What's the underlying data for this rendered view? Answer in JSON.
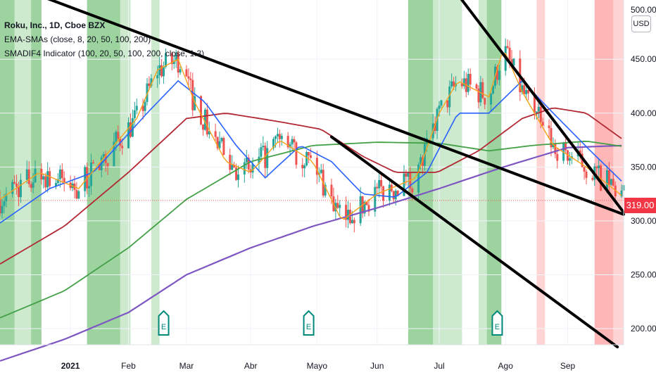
{
  "symbol": "Roku, Inc., 1D, Cboe BZX",
  "indicators": [
    "EMA-SMAs (close, 8, 20, 50, 100, 200)",
    "SMADIF4 Indicator (100, 20, 50, 100, 200, close, 1.3)"
  ],
  "currency": "USD",
  "last_price": "319.00",
  "colors": {
    "ema8": "#f7a21b",
    "ema20": "#2962ff",
    "sma50": "#b22833",
    "sma100": "#43a047",
    "sma200": "#7e57c2",
    "up": "#26a69a",
    "down": "#ef5350",
    "green_zone": "#4caf50",
    "red_zone": "#ff5252",
    "trendline": "#000000",
    "earnings": "#00897b"
  },
  "chart_data": {
    "type": "candlestick",
    "y_axis": {
      "position": "right",
      "scale": "linear",
      "ticks": [
        200,
        250,
        300,
        350,
        400,
        450
      ],
      "top_label": "500.00"
    },
    "x_axis_labels": [
      "2021",
      "Feb",
      "Mar",
      "Abr",
      "Mayo",
      "Jun",
      "Jul",
      "Ago",
      "Sep"
    ],
    "x_axis_label_dates": [
      "2021-01-04",
      "2021-02-01",
      "2021-03-01",
      "2021-04-01",
      "2021-05-03",
      "2021-06-01",
      "2021-07-01",
      "2021-08-02",
      "2021-09-01"
    ],
    "date_range": [
      "2020-12-01",
      "2021-09-28"
    ],
    "price_range": [
      185,
      505
    ],
    "last_price": 319,
    "price_line": 319,
    "control_points": {
      "ema8": [
        [
          "2020-12-01",
          320
        ],
        [
          "2020-12-20",
          345
        ],
        [
          "2021-01-08",
          330
        ],
        [
          "2021-01-25",
          370
        ],
        [
          "2021-02-05",
          395
        ],
        [
          "2021-02-15",
          440
        ],
        [
          "2021-02-25",
          450
        ],
        [
          "2021-03-05",
          410
        ],
        [
          "2021-03-20",
          355
        ],
        [
          "2021-04-01",
          345
        ],
        [
          "2021-04-15",
          375
        ],
        [
          "2021-05-01",
          355
        ],
        [
          "2021-05-15",
          300
        ],
        [
          "2021-06-01",
          325
        ],
        [
          "2021-06-20",
          340
        ],
        [
          "2021-07-01",
          400
        ],
        [
          "2021-07-10",
          430
        ],
        [
          "2021-07-25",
          415
        ],
        [
          "2021-08-01",
          460
        ],
        [
          "2021-08-10",
          420
        ],
        [
          "2021-08-25",
          370
        ],
        [
          "2021-09-10",
          350
        ],
        [
          "2021-09-28",
          322
        ]
      ],
      "ema20": [
        [
          "2020-12-01",
          298
        ],
        [
          "2020-12-25",
          330
        ],
        [
          "2021-01-15",
          345
        ],
        [
          "2021-02-10",
          400
        ],
        [
          "2021-02-25",
          430
        ],
        [
          "2021-03-10",
          410
        ],
        [
          "2021-03-25",
          370
        ],
        [
          "2021-04-08",
          340
        ],
        [
          "2021-04-25",
          370
        ],
        [
          "2021-05-10",
          355
        ],
        [
          "2021-05-25",
          325
        ],
        [
          "2021-06-10",
          322
        ],
        [
          "2021-06-25",
          345
        ],
        [
          "2021-07-10",
          400
        ],
        [
          "2021-07-25",
          400
        ],
        [
          "2021-08-10",
          430
        ],
        [
          "2021-08-25",
          400
        ],
        [
          "2021-09-12",
          365
        ],
        [
          "2021-09-28",
          335
        ]
      ],
      "sma50": [
        [
          "2020-12-01",
          260
        ],
        [
          "2021-01-01",
          295
        ],
        [
          "2021-02-01",
          345
        ],
        [
          "2021-03-01",
          395
        ],
        [
          "2021-03-20",
          400
        ],
        [
          "2021-04-15",
          392
        ],
        [
          "2021-05-05",
          385
        ],
        [
          "2021-05-25",
          360
        ],
        [
          "2021-06-10",
          345
        ],
        [
          "2021-06-30",
          345
        ],
        [
          "2021-07-20",
          365
        ],
        [
          "2021-08-10",
          395
        ],
        [
          "2021-08-25",
          405
        ],
        [
          "2021-09-10",
          400
        ],
        [
          "2021-09-28",
          375
        ]
      ],
      "sma100": [
        [
          "2020-12-01",
          210
        ],
        [
          "2021-01-01",
          235
        ],
        [
          "2021-02-01",
          275
        ],
        [
          "2021-03-01",
          320
        ],
        [
          "2021-04-01",
          355
        ],
        [
          "2021-05-01",
          370
        ],
        [
          "2021-06-01",
          373
        ],
        [
          "2021-07-01",
          372
        ],
        [
          "2021-07-25",
          365
        ],
        [
          "2021-08-15",
          370
        ],
        [
          "2021-09-10",
          374
        ],
        [
          "2021-09-28",
          369
        ]
      ],
      "sma200": [
        [
          "2020-12-01",
          170
        ],
        [
          "2021-01-01",
          190
        ],
        [
          "2021-02-01",
          215
        ],
        [
          "2021-03-01",
          250
        ],
        [
          "2021-04-01",
          275
        ],
        [
          "2021-05-01",
          295
        ],
        [
          "2021-06-01",
          312
        ],
        [
          "2021-07-01",
          330
        ],
        [
          "2021-08-01",
          350
        ],
        [
          "2021-09-01",
          368
        ],
        [
          "2021-09-28",
          370
        ]
      ]
    },
    "trendlines": [
      {
        "from": [
          "2020-12-23",
          507
        ],
        "to": [
          "2021-09-28",
          306
        ]
      },
      {
        "from": [
          "2021-07-10",
          510
        ],
        "to": [
          "2021-09-28",
          308
        ]
      },
      {
        "from": [
          "2021-05-10",
          378
        ],
        "to": [
          "2021-09-25",
          183
        ]
      }
    ],
    "shaded_zones": [
      {
        "start": "2020-12-01",
        "end": "2020-12-08",
        "color": "green",
        "strength": "strong"
      },
      {
        "start": "2020-12-08",
        "end": "2020-12-16",
        "color": "green",
        "strength": "light"
      },
      {
        "start": "2020-12-16",
        "end": "2020-12-21",
        "color": "green",
        "strength": "strong"
      },
      {
        "start": "2021-01-12",
        "end": "2021-01-28",
        "color": "green",
        "strength": "strong"
      },
      {
        "start": "2021-01-28",
        "end": "2021-02-02",
        "color": "green",
        "strength": "light"
      },
      {
        "start": "2021-02-12",
        "end": "2021-02-16",
        "color": "green",
        "strength": "light"
      },
      {
        "start": "2021-06-16",
        "end": "2021-06-28",
        "color": "green",
        "strength": "strong"
      },
      {
        "start": "2021-06-28",
        "end": "2021-07-12",
        "color": "green",
        "strength": "light"
      },
      {
        "start": "2021-07-20",
        "end": "2021-07-24",
        "color": "green",
        "strength": "light"
      },
      {
        "start": "2021-07-24",
        "end": "2021-07-31",
        "color": "green",
        "strength": "strong"
      },
      {
        "start": "2021-08-17",
        "end": "2021-08-21",
        "color": "red",
        "strength": "light"
      },
      {
        "start": "2021-09-14",
        "end": "2021-09-23",
        "color": "red",
        "strength": "strong"
      },
      {
        "start": "2021-09-23",
        "end": "2021-09-28",
        "color": "red",
        "strength": "light"
      }
    ],
    "earnings_markers": [
      {
        "label": "E",
        "date": "2021-02-18"
      },
      {
        "label": "E",
        "date": "2021-04-29"
      },
      {
        "label": "E",
        "date": "2021-07-29"
      }
    ]
  }
}
